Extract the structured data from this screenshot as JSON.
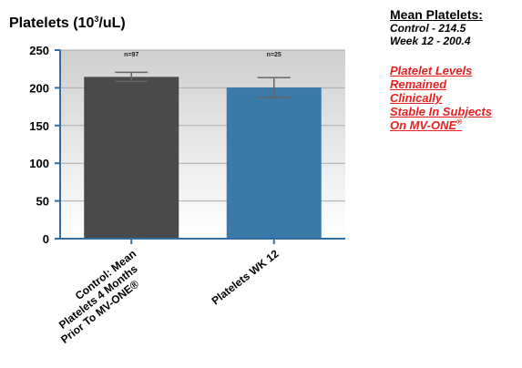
{
  "chart_data": {
    "type": "bar",
    "title": "Platelets (10",
    "title_sup": "3",
    "title_end": "/uL)",
    "categories": [
      "Control: Mean Platelets 4 Months Prior To MV-ONE®",
      "Platelets WK 12"
    ],
    "category_lines": [
      [
        "Control: Mean",
        "Platelets 4 Months",
        "Prior To MV-ONE®"
      ],
      [
        "Platelets WK 12"
      ]
    ],
    "values": [
      214.5,
      200.4
    ],
    "errors": [
      6,
      13
    ],
    "n_labels": [
      "n=97",
      "n=25"
    ],
    "bar_colors": [
      "#4a4a4a",
      "#3b79a8"
    ],
    "ytick_labels": [
      "0",
      "50",
      "100",
      "150",
      "200",
      "250"
    ],
    "ylim": [
      0,
      250
    ],
    "grid": true
  },
  "side": {
    "heading": "Mean Platelets:",
    "line1": "Control - 214.5",
    "line2": "Week 12 - 200.4",
    "note_l1": "Platelet Levels",
    "note_l2": "Remained",
    "note_l3": "Clinically",
    "note_l4": "Stable In Subjects",
    "note_l5": "On MV-ONE",
    "note_sup": "®"
  }
}
